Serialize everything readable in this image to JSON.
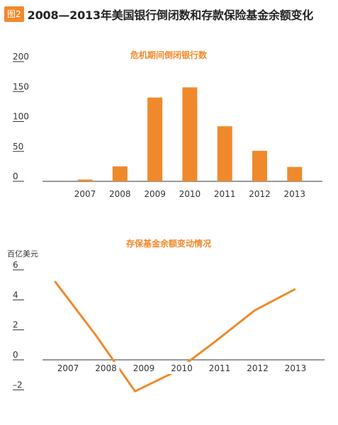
{
  "figure": {
    "badge": "图2",
    "title": "2008—2013年美国银行倒闭数和存款保险基金余额变化"
  },
  "colors": {
    "accent": "#f0892c",
    "axis": "#333333",
    "text": "#333333"
  },
  "chart_data": [
    {
      "type": "bar",
      "title": "危机期间倒闭银行数",
      "categories": [
        "2007",
        "2008",
        "2009",
        "2010",
        "2011",
        "2012",
        "2013"
      ],
      "values": [
        3,
        25,
        140,
        157,
        92,
        51,
        24
      ],
      "yticks": [
        "200",
        "150",
        "100",
        "50",
        "0"
      ],
      "ylim": [
        0,
        200
      ],
      "grid": false
    },
    {
      "type": "line",
      "title": "存保基金余额变动情况",
      "ylabel": "百亿美元",
      "categories": [
        "2007",
        "2008",
        "2009",
        "2010",
        "2011",
        "2012",
        "2013"
      ],
      "values": [
        5.2,
        1.7,
        -2.1,
        -0.8,
        1.2,
        3.3,
        4.7
      ],
      "yticks": [
        "6",
        "4",
        "2",
        "0",
        "–2"
      ],
      "ylim": [
        -2,
        6
      ],
      "grid": false
    }
  ]
}
